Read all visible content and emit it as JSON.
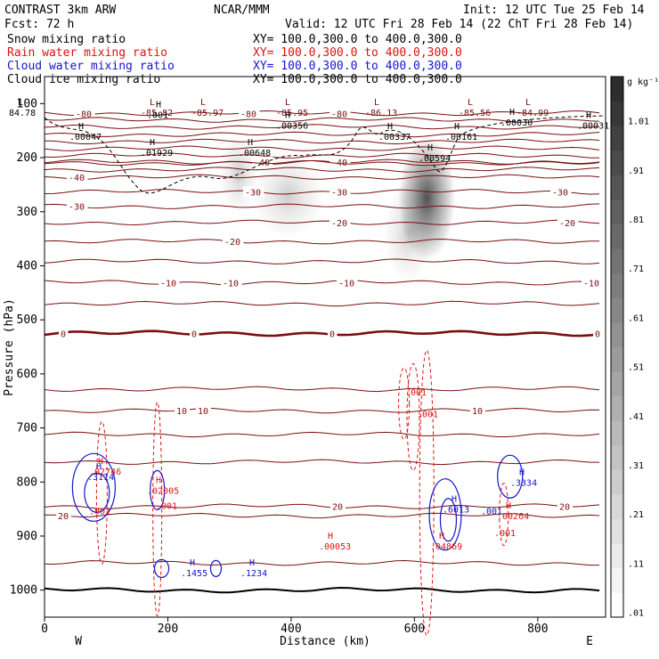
{
  "header": {
    "model": "CONTRAST  3km ARW",
    "org": "NCAR/MMM",
    "init": "Init: 12 UTC Tue 25 Feb 14",
    "fcst": "Fcst:   72 h",
    "valid": "Valid: 12 UTC Fri 28 Feb 14 (22 ChT Fri 28 Feb 14)"
  },
  "colors": {
    "temp": "#7a0f0f",
    "rain": "#dd1111",
    "cloud_water": "#1515cc",
    "cloud_ice": "#000000",
    "snow_shade": "#333333"
  },
  "chart_data": {
    "type": "cross-section",
    "fields": [
      {
        "name": "Snow mixing ratio",
        "color": "#000000",
        "xy": "XY=  100.0,300.0 to 400.0,300.0"
      },
      {
        "name": "Rain water mixing ratio",
        "color": "#dd1111",
        "xy": "XY=  100.0,300.0 to 400.0,300.0"
      },
      {
        "name": "Cloud water mixing ratio",
        "color": "#1515cc",
        "xy": "XY=  100.0,300.0 to 400.0,300.0"
      },
      {
        "name": "Cloud ice mixing ratio",
        "color": "#000000",
        "xy": "XY=  100.0,300.0 to 400.0,300.0"
      }
    ],
    "xlabel": "Distance (km)",
    "ylabel": "Pressure (hPa)",
    "xlim": [
      0,
      910
    ],
    "ylim": [
      1050,
      50
    ],
    "xticks": [
      0,
      200,
      400,
      600,
      800
    ],
    "yticks": [
      100,
      200,
      300,
      400,
      500,
      600,
      700,
      800,
      900,
      1000
    ],
    "left_end": "W",
    "right_end": "E",
    "colorbar": {
      "units": "g kg⁻¹",
      "labels": [
        ".01",
        ".11",
        ".21",
        ".31",
        ".41",
        ".51",
        ".61",
        ".71",
        ".81",
        ".91",
        "1.01"
      ],
      "range": [
        0,
        1.1
      ]
    },
    "temperature_contours": [
      {
        "p": 118,
        "label": "-80",
        "lx": 85
      },
      {
        "p": 118,
        "label": "-80",
        "lx": 270
      },
      {
        "p": 118,
        "label": "-80",
        "lx": 372
      },
      {
        "p": 118,
        "label": "-80",
        "lx": 828
      },
      {
        "p": 130
      },
      {
        "p": 143
      },
      {
        "p": 157
      },
      {
        "p": 170
      },
      {
        "p": 183
      },
      {
        "p": 196
      },
      {
        "p": 208,
        "label": "-40",
        "lx": 285
      },
      {
        "p": 208,
        "label": "-40",
        "lx": 372
      },
      {
        "p": 210
      },
      {
        "p": 222
      },
      {
        "p": 236,
        "label": "-40",
        "lx": 77
      },
      {
        "p": 263,
        "label": "-30",
        "lx": 275
      },
      {
        "p": 263,
        "label": "-30",
        "lx": 372
      },
      {
        "p": 263,
        "label": "-30",
        "lx": 620
      },
      {
        "p": 290,
        "label": "-30",
        "lx": 77
      },
      {
        "p": 320,
        "label": "-20",
        "lx": 372
      },
      {
        "p": 320,
        "label": "-20",
        "lx": 628
      },
      {
        "p": 355,
        "label": "-20",
        "lx": 252
      },
      {
        "p": 392
      },
      {
        "p": 431,
        "label": "-10",
        "lx": 180
      },
      {
        "p": 431,
        "label": "-10",
        "lx": 250
      },
      {
        "p": 431,
        "label": "-10",
        "lx": 380
      },
      {
        "p": 431,
        "label": "-10",
        "lx": 655
      },
      {
        "p": 470
      },
      {
        "p": 525,
        "label": "0",
        "lx": 68,
        "bold": true
      },
      {
        "p": 525,
        "label": "0",
        "lx": 215,
        "bold": true
      },
      {
        "p": 525,
        "label": "0",
        "lx": 370,
        "bold": true
      },
      {
        "p": 525,
        "label": "0",
        "lx": 668,
        "bold": true
      },
      {
        "p": 628
      },
      {
        "p": 668,
        "label": "10",
        "lx": 198
      },
      {
        "p": 668,
        "label": "10",
        "lx": 222
      },
      {
        "p": 668,
        "label": "10",
        "lx": 530
      },
      {
        "p": 712
      },
      {
        "p": 763
      },
      {
        "p": 845,
        "label": "20",
        "lx": 373
      },
      {
        "p": 845,
        "label": "20",
        "lx": 628
      },
      {
        "p": 862,
        "label": "20",
        "lx": 65
      },
      {
        "p": 950
      },
      {
        "p": 1000,
        "black": true
      }
    ],
    "cloud_ice_contours": [
      {
        "label": "-85.97",
        "x": 210,
        "p": 120
      },
      {
        "label": "-85.95",
        "x": 305,
        "p": 120
      }
    ],
    "extrema_labels": [
      {
        "type": "L",
        "value": "84.78",
        "x": 10,
        "p": 116,
        "color": "#000000"
      },
      {
        "type": "L",
        "value": "-85.82",
        "x": 158,
        "p": 116,
        "color": "#7a0f0f"
      },
      {
        "type": "L",
        "value": "-85.97",
        "x": 215,
        "p": 116,
        "color": "#7a0f0f"
      },
      {
        "type": "L",
        "value": "-85.95",
        "x": 310,
        "p": 116,
        "color": "#7a0f0f"
      },
      {
        "type": "L",
        "value": "-86.13",
        "x": 410,
        "p": 116,
        "color": "#7a0f0f"
      },
      {
        "type": "L",
        "value": "-85.56",
        "x": 515,
        "p": 116,
        "color": "#7a0f0f"
      },
      {
        "type": "L",
        "value": "-84.99",
        "x": 580,
        "p": 116,
        "color": "#7a0f0f"
      },
      {
        "type": "H",
        "value": ".001",
        "x": 165,
        "p": 120,
        "color": "#000000"
      },
      {
        "type": "H",
        "value": ".00356",
        "x": 310,
        "p": 140,
        "color": "#000000"
      },
      {
        "type": "H",
        "value": ".00030",
        "x": 562,
        "p": 134,
        "color": "#000000"
      },
      {
        "type": "H",
        "value": ".00031",
        "x": 648,
        "p": 140,
        "color": "#000000"
      },
      {
        "type": "H",
        "value": ".00047",
        "x": 78,
        "p": 160,
        "color": "#000000"
      },
      {
        "type": "H",
        "value": ".00337",
        "x": 425,
        "p": 160,
        "color": "#000000"
      },
      {
        "type": "H",
        "value": ".00161",
        "x": 500,
        "p": 160,
        "color": "#000000"
      },
      {
        "type": "H",
        "value": ".01929",
        "x": 158,
        "p": 190,
        "color": "#000000"
      },
      {
        "type": "H",
        "value": ".00648",
        "x": 268,
        "p": 190,
        "color": "#000000"
      },
      {
        "type": "H",
        "value": ".00594",
        "x": 470,
        "p": 200,
        "color": "#000000"
      },
      {
        "type": "H",
        "value": ".02746",
        "x": 100,
        "p": 780,
        "color": "#dd1111"
      },
      {
        "type": "H",
        "value": ".3114",
        "x": 98,
        "p": 790,
        "color": "#1515cc"
      },
      {
        "type": "H",
        "value": ".02005",
        "x": 165,
        "p": 815,
        "color": "#dd1111"
      },
      {
        "type": "H",
        "value": ".00053",
        "x": 358,
        "p": 918,
        "color": "#dd1111"
      },
      {
        "type": "H",
        "value": ".6013",
        "x": 497,
        "p": 850,
        "color": "#1515cc"
      },
      {
        "type": "H",
        "value": ".04869",
        "x": 483,
        "p": 918,
        "color": "#dd1111"
      },
      {
        "type": "H",
        "value": ".3334",
        "x": 573,
        "p": 800,
        "color": "#1515cc"
      },
      {
        "type": "H",
        "value": ".00264",
        "x": 558,
        "p": 862,
        "color": "#dd1111"
      },
      {
        "type": "H",
        "value": ".1455",
        "x": 203,
        "p": 968,
        "color": "#1515cc"
      },
      {
        "type": "H",
        "value": ".1234",
        "x": 270,
        "p": 968,
        "color": "#1515cc"
      }
    ],
    "rain_labels": [
      {
        "value": ".001",
        "x": 455,
        "p": 640
      },
      {
        "value": ".001",
        "x": 468,
        "p": 680
      },
      {
        "value": ".001",
        "x": 100,
        "p": 860
      },
      {
        "value": ".001",
        "x": 175,
        "p": 850
      },
      {
        "value": ".001",
        "x": 555,
        "p": 900
      }
    ],
    "cloud_water_labels": [
      {
        "value": ".001",
        "x": 540,
        "p": 860
      }
    ]
  }
}
